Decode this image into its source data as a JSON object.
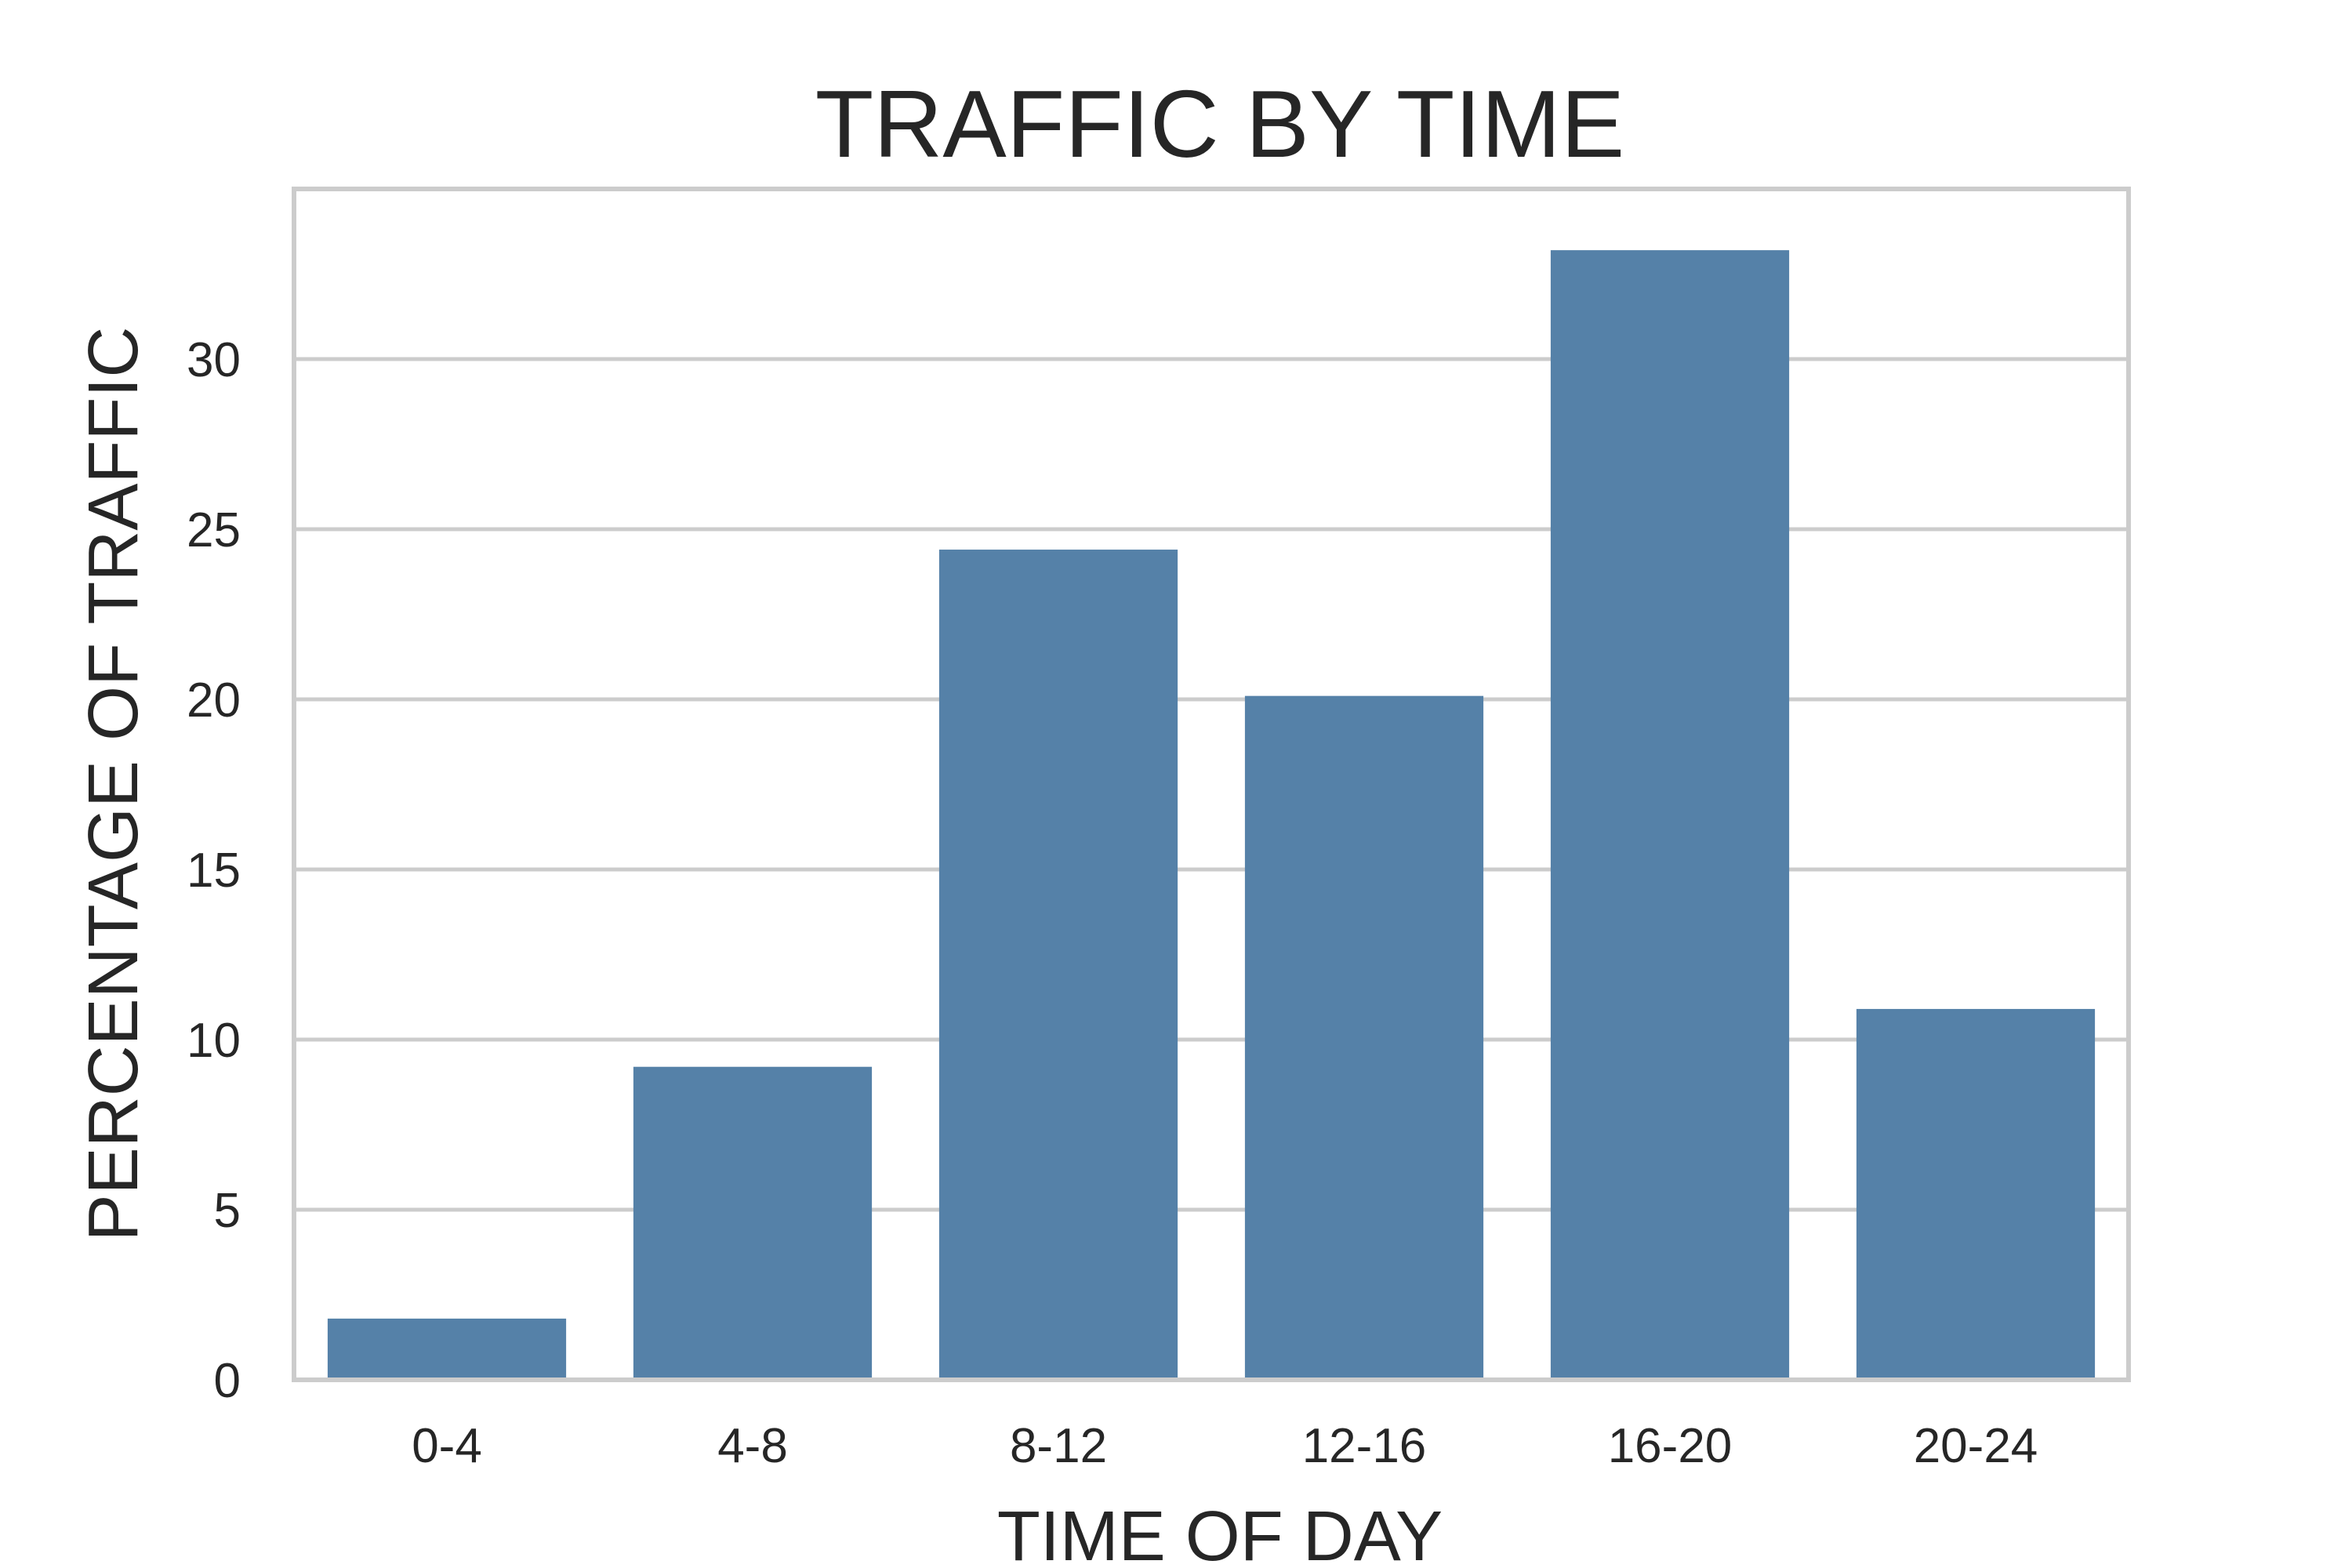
{
  "chart_data": {
    "type": "bar",
    "title": "TRAFFIC BY TIME",
    "xlabel": "TIME OF DAY",
    "ylabel": "PERCENTAGE OF TRAFFIC",
    "categories": [
      "0-4",
      "4-8",
      "8-12",
      "12-16",
      "16-20",
      "20-24"
    ],
    "values": [
      1.8,
      9.2,
      24.4,
      20.1,
      33.2,
      10.9
    ],
    "ylim": [
      0,
      35
    ],
    "yticks": [
      0,
      5,
      10,
      15,
      20,
      25,
      30
    ],
    "grid": true,
    "bar_color": "#5581a8",
    "grid_color": "#cccccc"
  }
}
